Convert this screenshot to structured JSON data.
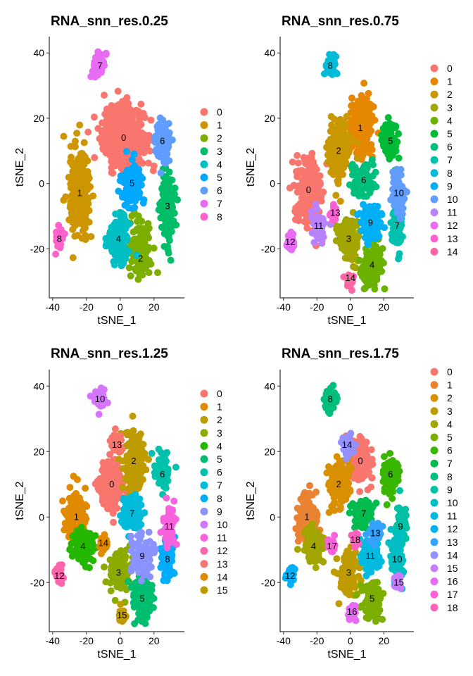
{
  "chart_data": [
    {
      "type": "scatter",
      "title": "RNA_snn_res.0.25",
      "xlabel": "tSNE_1",
      "ylabel": "tSNE_2",
      "xlim": [
        -42,
        38
      ],
      "ylim": [
        -35,
        45
      ],
      "xticks": [
        -40,
        -20,
        0,
        20
      ],
      "yticks": [
        -20,
        0,
        20,
        40
      ],
      "legend_position": "right",
      "grid": false,
      "colors": [
        "#F8766D",
        "#CD9600",
        "#7CAE00",
        "#00BE67",
        "#00BFC4",
        "#00A9FF",
        "#619CFF",
        "#E76BF3",
        "#FF61CC"
      ],
      "clusters": [
        {
          "label": "0",
          "x": 2,
          "y": 14,
          "sx": 10,
          "sy": 8,
          "n": 600,
          "lx": 2,
          "ly": 14
        },
        {
          "label": "1",
          "x": -24,
          "y": -3,
          "sx": 5,
          "sy": 11,
          "n": 280,
          "lx": -24,
          "ly": -3
        },
        {
          "label": "2",
          "x": 12,
          "y": -20,
          "sx": 5,
          "sy": 7,
          "n": 150,
          "lx": 12,
          "ly": -23
        },
        {
          "label": "3",
          "x": 28,
          "y": -7,
          "sx": 4,
          "sy": 10,
          "n": 130,
          "lx": 28,
          "ly": -7
        },
        {
          "label": "4",
          "x": -1,
          "y": -17,
          "sx": 5,
          "sy": 6,
          "n": 150,
          "lx": -1,
          "ly": -17
        },
        {
          "label": "5",
          "x": 7,
          "y": 0,
          "sx": 5,
          "sy": 5,
          "n": 120,
          "lx": 7,
          "ly": 0
        },
        {
          "label": "6",
          "x": 25,
          "y": 13,
          "sx": 4,
          "sy": 5,
          "n": 90,
          "lx": 25,
          "ly": 13
        },
        {
          "label": "7",
          "x": -12,
          "y": 37,
          "sx": 3,
          "sy": 3,
          "n": 50,
          "lx": -12,
          "ly": 36
        },
        {
          "label": "8",
          "x": -36,
          "y": -17,
          "sx": 2,
          "sy": 3,
          "n": 40,
          "lx": -36,
          "ly": -17
        }
      ]
    },
    {
      "type": "scatter",
      "title": "RNA_snn_res.0.75",
      "xlabel": "tSNE_1",
      "ylabel": "tSNE_2",
      "xlim": [
        -42,
        38
      ],
      "ylim": [
        -35,
        45
      ],
      "xticks": [
        -40,
        -20,
        0,
        20
      ],
      "yticks": [
        -20,
        0,
        20,
        40
      ],
      "legend_position": "right",
      "grid": false,
      "colors": [
        "#F8766D",
        "#E58700",
        "#C99800",
        "#A3A500",
        "#6BB100",
        "#00BA38",
        "#00BF7D",
        "#00C0AF",
        "#00BCD8",
        "#00B0F6",
        "#619CFF",
        "#B983FF",
        "#E76BF3",
        "#FD61D1",
        "#FF67A4"
      ],
      "clusters": [
        {
          "label": "0",
          "x": -25,
          "y": -2,
          "sx": 6,
          "sy": 8,
          "n": 260,
          "lx": -25,
          "ly": -2
        },
        {
          "label": "1",
          "x": 6,
          "y": 17,
          "sx": 6,
          "sy": 7,
          "n": 250,
          "lx": 6,
          "ly": 17
        },
        {
          "label": "2",
          "x": -7,
          "y": 10,
          "sx": 5,
          "sy": 7,
          "n": 200,
          "lx": -7,
          "ly": 10
        },
        {
          "label": "3",
          "x": -1,
          "y": -17,
          "sx": 5,
          "sy": 5,
          "n": 130,
          "lx": -1,
          "ly": -17
        },
        {
          "label": "4",
          "x": 13,
          "y": -25,
          "sx": 5,
          "sy": 5,
          "n": 120,
          "lx": 13,
          "ly": -25
        },
        {
          "label": "5",
          "x": 24,
          "y": 13,
          "sx": 4,
          "sy": 5,
          "n": 90,
          "lx": 24,
          "ly": 13
        },
        {
          "label": "6",
          "x": 7,
          "y": 1,
          "sx": 5,
          "sy": 4,
          "n": 120,
          "lx": 8,
          "ly": 1
        },
        {
          "label": "7",
          "x": 28,
          "y": -13,
          "sx": 3,
          "sy": 7,
          "n": 80,
          "lx": 28,
          "ly": -13
        },
        {
          "label": "8",
          "x": -12,
          "y": 36,
          "sx": 3,
          "sy": 3,
          "n": 50,
          "lx": -12,
          "ly": 36
        },
        {
          "label": "9",
          "x": 12,
          "y": -12,
          "sx": 5,
          "sy": 5,
          "n": 120,
          "lx": 12,
          "ly": -12
        },
        {
          "label": "10",
          "x": 29,
          "y": -3,
          "sx": 3,
          "sy": 6,
          "n": 80,
          "lx": 29,
          "ly": -3
        },
        {
          "label": "11",
          "x": -19,
          "y": -13,
          "sx": 4,
          "sy": 4,
          "n": 70,
          "lx": -19,
          "ly": -13
        },
        {
          "label": "12",
          "x": -36,
          "y": -18,
          "sx": 2,
          "sy": 2,
          "n": 40,
          "lx": -36,
          "ly": -18
        },
        {
          "label": "13",
          "x": -10,
          "y": -9,
          "sx": 2,
          "sy": 2,
          "n": 30,
          "lx": -9,
          "ly": -9
        },
        {
          "label": "14",
          "x": 0,
          "y": -30,
          "sx": 2,
          "sy": 2,
          "n": 25,
          "lx": 0,
          "ly": -29
        }
      ]
    },
    {
      "type": "scatter",
      "title": "RNA_snn_res.1.25",
      "xlabel": "tSNE_1",
      "ylabel": "tSNE_2",
      "xlim": [
        -42,
        38
      ],
      "ylim": [
        -35,
        45
      ],
      "xticks": [
        -40,
        -20,
        0,
        20
      ],
      "yticks": [
        -20,
        0,
        20,
        40
      ],
      "legend_position": "right",
      "grid": false,
      "colors": [
        "#F8766D",
        "#E18A00",
        "#BE9C00",
        "#8CAB00",
        "#24B700",
        "#00BE70",
        "#00C1AB",
        "#00BBDA",
        "#00ACFC",
        "#8B93FF",
        "#D575FE",
        "#F962DD",
        "#FF65AC",
        "#F8766D",
        "#E18A00",
        "#BE9C00"
      ],
      "clusters": [
        {
          "label": "0",
          "x": -5,
          "y": 10,
          "sx": 6,
          "sy": 6,
          "n": 220,
          "lx": -5,
          "ly": 10
        },
        {
          "label": "1",
          "x": -26,
          "y": 0,
          "sx": 5,
          "sy": 6,
          "n": 180,
          "lx": -26,
          "ly": 0
        },
        {
          "label": "2",
          "x": 8,
          "y": 17,
          "sx": 5,
          "sy": 7,
          "n": 180,
          "lx": 8,
          "ly": 17
        },
        {
          "label": "3",
          "x": -1,
          "y": -17,
          "sx": 5,
          "sy": 5,
          "n": 120,
          "lx": -1,
          "ly": -17
        },
        {
          "label": "4",
          "x": -22,
          "y": -9,
          "sx": 5,
          "sy": 4,
          "n": 120,
          "lx": -22,
          "ly": -9
        },
        {
          "label": "5",
          "x": 13,
          "y": -25,
          "sx": 5,
          "sy": 5,
          "n": 120,
          "lx": 13,
          "ly": -25
        },
        {
          "label": "6",
          "x": 25,
          "y": 13,
          "sx": 4,
          "sy": 5,
          "n": 90,
          "lx": 25,
          "ly": 13
        },
        {
          "label": "7",
          "x": 7,
          "y": 1,
          "sx": 5,
          "sy": 4,
          "n": 120,
          "lx": 7,
          "ly": 1
        },
        {
          "label": "8",
          "x": 28,
          "y": -13,
          "sx": 3,
          "sy": 7,
          "n": 80,
          "lx": 28,
          "ly": -13
        },
        {
          "label": "9",
          "x": 13,
          "y": -12,
          "sx": 5,
          "sy": 5,
          "n": 110,
          "lx": 13,
          "ly": -12
        },
        {
          "label": "10",
          "x": -12,
          "y": 36,
          "sx": 3,
          "sy": 3,
          "n": 50,
          "lx": -12,
          "ly": 36
        },
        {
          "label": "11",
          "x": 29,
          "y": -3,
          "sx": 3,
          "sy": 6,
          "n": 70,
          "lx": 29,
          "ly": -3
        },
        {
          "label": "12",
          "x": -36,
          "y": -18,
          "sx": 2,
          "sy": 2,
          "n": 40,
          "lx": -36,
          "ly": -18
        },
        {
          "label": "13",
          "x": -2,
          "y": 22,
          "sx": 3,
          "sy": 3,
          "n": 50,
          "lx": -2,
          "ly": 22
        },
        {
          "label": "14",
          "x": -10,
          "y": -8,
          "sx": 2,
          "sy": 2,
          "n": 30,
          "lx": -10,
          "ly": -8
        },
        {
          "label": "15",
          "x": 1,
          "y": -30,
          "sx": 2,
          "sy": 2,
          "n": 25,
          "lx": 1,
          "ly": -30
        }
      ]
    },
    {
      "type": "scatter",
      "title": "RNA_snn_res.1.75",
      "xlabel": "tSNE_1",
      "ylabel": "tSNE_2",
      "xlim": [
        -42,
        38
      ],
      "ylim": [
        -35,
        45
      ],
      "xticks": [
        -40,
        -20,
        0,
        20
      ],
      "yticks": [
        -20,
        0,
        20,
        40
      ],
      "legend_position": "right",
      "grid": false,
      "colors": [
        "#F8766D",
        "#EA8331",
        "#D89000",
        "#C09B00",
        "#A3A500",
        "#7CAE00",
        "#39B600",
        "#00BB4E",
        "#00BF7D",
        "#00C1A3",
        "#00BFC4",
        "#00BAE0",
        "#00B0F6",
        "#35A2FF",
        "#9590FF",
        "#C77CFF",
        "#E76BF3",
        "#FA62DB",
        "#FF62BC"
      ],
      "clusters": [
        {
          "label": "0",
          "x": 6,
          "y": 17,
          "sx": 5,
          "sy": 6,
          "n": 180,
          "lx": 6,
          "ly": 17
        },
        {
          "label": "1",
          "x": -26,
          "y": 0,
          "sx": 5,
          "sy": 6,
          "n": 180,
          "lx": -26,
          "ly": 0
        },
        {
          "label": "2",
          "x": -7,
          "y": 10,
          "sx": 5,
          "sy": 6,
          "n": 170,
          "lx": -7,
          "ly": 10
        },
        {
          "label": "3",
          "x": -1,
          "y": -17,
          "sx": 5,
          "sy": 5,
          "n": 120,
          "lx": -1,
          "ly": -17
        },
        {
          "label": "4",
          "x": -22,
          "y": -9,
          "sx": 5,
          "sy": 4,
          "n": 120,
          "lx": -22,
          "ly": -9
        },
        {
          "label": "5",
          "x": 13,
          "y": -25,
          "sx": 5,
          "sy": 5,
          "n": 120,
          "lx": 13,
          "ly": -25
        },
        {
          "label": "6",
          "x": 24,
          "y": 13,
          "sx": 4,
          "sy": 5,
          "n": 90,
          "lx": 24,
          "ly": 13
        },
        {
          "label": "7",
          "x": 8,
          "y": 1,
          "sx": 5,
          "sy": 4,
          "n": 110,
          "lx": 8,
          "ly": 1
        },
        {
          "label": "8",
          "x": -12,
          "y": 36,
          "sx": 3,
          "sy": 3,
          "n": 50,
          "lx": -12,
          "ly": 36
        },
        {
          "label": "9",
          "x": 30,
          "y": -3,
          "sx": 3,
          "sy": 5,
          "n": 70,
          "lx": 30,
          "ly": -3
        },
        {
          "label": "10",
          "x": 28,
          "y": -13,
          "sx": 3,
          "sy": 6,
          "n": 70,
          "lx": 28,
          "ly": -13
        },
        {
          "label": "11",
          "x": 12,
          "y": -12,
          "sx": 5,
          "sy": 4,
          "n": 100,
          "lx": 12,
          "ly": -12
        },
        {
          "label": "12",
          "x": -36,
          "y": -18,
          "sx": 2,
          "sy": 2,
          "n": 40,
          "lx": -36,
          "ly": -18
        },
        {
          "label": "13",
          "x": 15,
          "y": -5,
          "sx": 3,
          "sy": 3,
          "n": 50,
          "lx": 15,
          "ly": -5
        },
        {
          "label": "14",
          "x": -2,
          "y": 22,
          "sx": 3,
          "sy": 3,
          "n": 50,
          "lx": -2,
          "ly": 22
        },
        {
          "label": "15",
          "x": 29,
          "y": -20,
          "sx": 2,
          "sy": 2,
          "n": 25,
          "lx": 29,
          "ly": -20
        },
        {
          "label": "16",
          "x": 1,
          "y": -29,
          "sx": 2,
          "sy": 2,
          "n": 25,
          "lx": 1,
          "ly": -29
        },
        {
          "label": "17",
          "x": -11,
          "y": -9,
          "sx": 2,
          "sy": 2,
          "n": 25,
          "lx": -11,
          "ly": -9
        },
        {
          "label": "18",
          "x": 3,
          "y": -7,
          "sx": 2,
          "sy": 2,
          "n": 25,
          "lx": 3,
          "ly": -7
        }
      ]
    }
  ]
}
